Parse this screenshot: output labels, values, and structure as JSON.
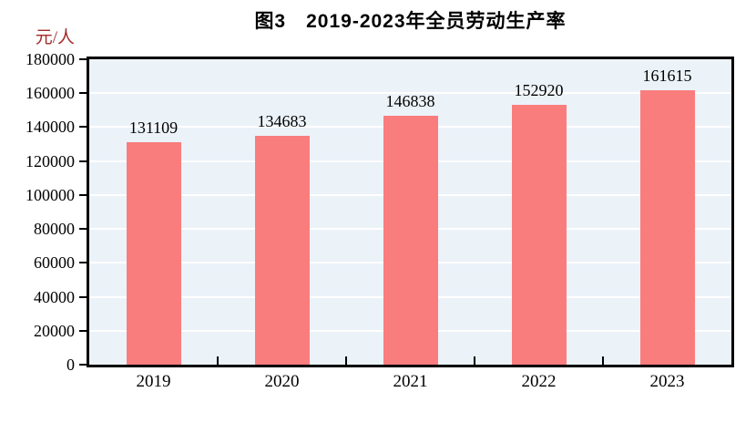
{
  "title": "图3　2019-2023年全员劳动生产率",
  "y_axis_unit": "元/人",
  "colors": {
    "bar": "#FA7D7D",
    "plot_background": "#EBF2F8",
    "gridline": "#FFFFFF",
    "axis": "#000000",
    "title_text": "#000000",
    "unit_label": "#A52A2A",
    "page_background": "#FFFFFF"
  },
  "chart_data": {
    "type": "bar",
    "title": "图3　2019-2023年全员劳动生产率",
    "categories": [
      "2019",
      "2020",
      "2021",
      "2022",
      "2023"
    ],
    "values": [
      131109,
      134683,
      146838,
      152920,
      161615
    ],
    "value_labels": [
      "131109",
      "134683",
      "146838",
      "152920",
      "161615"
    ],
    "xlabel": "",
    "ylabel": "元/人",
    "ylim": [
      0,
      180000
    ],
    "ytick_step": 20000,
    "ytick_labels": [
      "0",
      "20000",
      "40000",
      "60000",
      "80000",
      "100000",
      "120000",
      "140000",
      "160000",
      "180000"
    ],
    "grid": true,
    "gridline_orientation": "horizontal",
    "legend_position": "none"
  }
}
